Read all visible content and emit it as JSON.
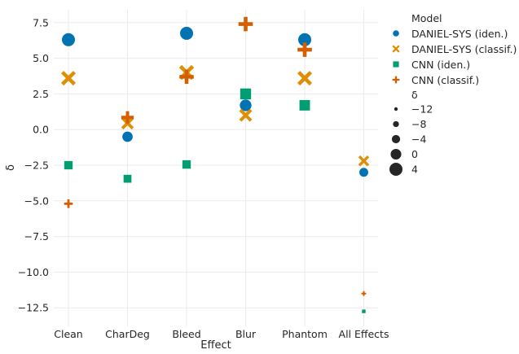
{
  "chart_data": {
    "type": "scatter",
    "title": "",
    "xlabel": "Effect",
    "ylabel": "δ",
    "categories": [
      "Clean",
      "CharDeg",
      "Bleed",
      "Blur",
      "Phantom",
      "All Effects"
    ],
    "ylim": [
      -13.8,
      8.4
    ],
    "yticks": [
      7.5,
      5.0,
      2.5,
      0.0,
      -2.5,
      -5.0,
      -7.5,
      -10.0,
      -12.5
    ],
    "ytick_labels": [
      "7.5",
      "5.0",
      "2.5",
      "0.0",
      "−2.5",
      "−5.0",
      "−7.5",
      "−10.0",
      "−12.5"
    ],
    "grid": true,
    "legend_placement": "outside right",
    "series": [
      {
        "name": "DANIEL-SYS (iden.)",
        "marker": "circle",
        "color": "#0173b2",
        "values": [
          6.3,
          -0.5,
          6.75,
          1.7,
          6.3,
          -3.0
        ]
      },
      {
        "name": "DANIEL-SYS (classif.)",
        "marker": "x",
        "color": "#de8f05",
        "values": [
          3.6,
          0.45,
          4.0,
          1.0,
          3.6,
          -2.2
        ]
      },
      {
        "name": "CNN (iden.)",
        "marker": "square",
        "color": "#029e73",
        "values": [
          -2.5,
          -3.45,
          -2.45,
          2.5,
          1.7,
          -12.75
        ]
      },
      {
        "name": "CNN (classif.)",
        "marker": "plus",
        "color": "#d55e00",
        "values": [
          -5.2,
          0.85,
          3.7,
          7.4,
          5.6,
          -11.5
        ]
      }
    ],
    "size_legend": {
      "title": "δ",
      "labels": [
        "−12",
        "−8",
        "−4",
        "0",
        "4"
      ],
      "values": [
        -12,
        -8,
        -4,
        0,
        4
      ]
    },
    "legend_title": "Model"
  }
}
